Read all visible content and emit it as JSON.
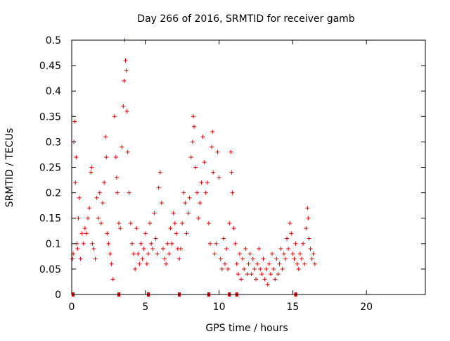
{
  "chart_data": {
    "type": "scatter",
    "title": "Day 266 of 2016, SRMTID for receiver gamb",
    "xlabel": "GPS time / hours",
    "ylabel": "SRMTID / TECUs",
    "xlim": [
      0,
      24
    ],
    "ylim": [
      0,
      0.5
    ],
    "x_ticks": [
      0,
      5,
      10,
      15,
      20
    ],
    "y_ticks": [
      0,
      0.05,
      0.1,
      0.15,
      0.2,
      0.25,
      0.3,
      0.35,
      0.4,
      0.45,
      0.5
    ],
    "x_tick_labels": [
      "0",
      "5",
      "10",
      "15",
      "20"
    ],
    "y_tick_labels": [
      "0",
      "0.05",
      "0.1",
      "0.15",
      "0.2",
      "0.25",
      "0.3",
      "0.35",
      "0.4",
      "0.45",
      "0.5"
    ],
    "grid": false,
    "marker": "+",
    "series": [
      {
        "name": "SRMTID",
        "color": "#e00000",
        "points": [
          [
            0.05,
            0.07
          ],
          [
            0.1,
            0.08
          ],
          [
            0.15,
            0.3
          ],
          [
            0.2,
            0.34
          ],
          [
            0.25,
            0.22
          ],
          [
            0.3,
            0.27
          ],
          [
            0.35,
            0.1
          ],
          [
            0.4,
            0.09
          ],
          [
            0.45,
            0.15
          ],
          [
            0.5,
            0.19
          ],
          [
            0.6,
            0.07
          ],
          [
            0.7,
            0.12
          ],
          [
            0.8,
            0.1
          ],
          [
            0.9,
            0.13
          ],
          [
            1.0,
            0.12
          ],
          [
            1.1,
            0.15
          ],
          [
            1.2,
            0.17
          ],
          [
            1.3,
            0.24
          ],
          [
            1.35,
            0.25
          ],
          [
            1.4,
            0.1
          ],
          [
            1.5,
            0.09
          ],
          [
            1.6,
            0.07
          ],
          [
            1.7,
            0.19
          ],
          [
            1.8,
            0.15
          ],
          [
            1.9,
            0.2
          ],
          [
            2.0,
            0.14
          ],
          [
            2.1,
            0.18
          ],
          [
            2.2,
            0.22
          ],
          [
            2.3,
            0.31
          ],
          [
            2.35,
            0.27
          ],
          [
            2.4,
            0.12
          ],
          [
            2.5,
            0.1
          ],
          [
            2.6,
            0.08
          ],
          [
            2.7,
            0.06
          ],
          [
            2.8,
            0.03
          ],
          [
            2.9,
            0.35
          ],
          [
            3.0,
            0.27
          ],
          [
            3.05,
            0.23
          ],
          [
            3.1,
            0.2
          ],
          [
            3.2,
            0.14
          ],
          [
            3.3,
            0.13
          ],
          [
            3.4,
            0.29
          ],
          [
            3.5,
            0.37
          ],
          [
            3.55,
            0.42
          ],
          [
            3.6,
            0.5
          ],
          [
            3.65,
            0.46
          ],
          [
            3.7,
            0.44
          ],
          [
            3.75,
            0.36
          ],
          [
            3.8,
            0.28
          ],
          [
            3.9,
            0.2
          ],
          [
            4.0,
            0.14
          ],
          [
            4.1,
            0.1
          ],
          [
            4.2,
            0.08
          ],
          [
            4.3,
            0.05
          ],
          [
            4.4,
            0.13
          ],
          [
            4.5,
            0.08
          ],
          [
            4.6,
            0.06
          ],
          [
            4.7,
            0.1
          ],
          [
            4.8,
            0.07
          ],
          [
            4.9,
            0.09
          ],
          [
            5.0,
            0.12
          ],
          [
            5.1,
            0.06
          ],
          [
            5.2,
            0.08
          ],
          [
            5.3,
            0.14
          ],
          [
            5.4,
            0.1
          ],
          [
            5.5,
            0.09
          ],
          [
            5.6,
            0.16
          ],
          [
            5.7,
            0.11
          ],
          [
            5.8,
            0.08
          ],
          [
            5.9,
            0.21
          ],
          [
            6.0,
            0.24
          ],
          [
            6.1,
            0.18
          ],
          [
            6.2,
            0.09
          ],
          [
            6.3,
            0.07
          ],
          [
            6.4,
            0.06
          ],
          [
            6.5,
            0.1
          ],
          [
            6.6,
            0.08
          ],
          [
            6.7,
            0.13
          ],
          [
            6.8,
            0.1
          ],
          [
            6.9,
            0.16
          ],
          [
            7.0,
            0.14
          ],
          [
            7.1,
            0.12
          ],
          [
            7.2,
            0.09
          ],
          [
            7.3,
            0.07
          ],
          [
            7.4,
            0.09
          ],
          [
            7.5,
            0.14
          ],
          [
            7.6,
            0.2
          ],
          [
            7.7,
            0.18
          ],
          [
            7.8,
            0.12
          ],
          [
            7.9,
            0.16
          ],
          [
            8.0,
            0.19
          ],
          [
            8.1,
            0.27
          ],
          [
            8.2,
            0.3
          ],
          [
            8.25,
            0.35
          ],
          [
            8.3,
            0.33
          ],
          [
            8.4,
            0.25
          ],
          [
            8.5,
            0.2
          ],
          [
            8.6,
            0.15
          ],
          [
            8.7,
            0.18
          ],
          [
            8.8,
            0.22
          ],
          [
            8.9,
            0.31
          ],
          [
            9.0,
            0.26
          ],
          [
            9.1,
            0.2
          ],
          [
            9.2,
            0.22
          ],
          [
            9.3,
            0.14
          ],
          [
            9.4,
            0.1
          ],
          [
            9.5,
            0.29
          ],
          [
            9.55,
            0.32
          ],
          [
            9.6,
            0.24
          ],
          [
            9.7,
            0.08
          ],
          [
            9.8,
            0.1
          ],
          [
            9.9,
            0.28
          ],
          [
            10.0,
            0.23
          ],
          [
            10.1,
            0.07
          ],
          [
            10.2,
            0.05
          ],
          [
            10.3,
            0.11
          ],
          [
            10.4,
            0.06
          ],
          [
            10.5,
            0.09
          ],
          [
            10.6,
            0.05
          ],
          [
            10.7,
            0.14
          ],
          [
            10.8,
            0.28
          ],
          [
            10.85,
            0.24
          ],
          [
            10.9,
            0.2
          ],
          [
            11.0,
            0.13
          ],
          [
            11.1,
            0.1
          ],
          [
            11.2,
            0.06
          ],
          [
            11.3,
            0.04
          ],
          [
            11.4,
            0.08
          ],
          [
            11.5,
            0.03
          ],
          [
            11.6,
            0.07
          ],
          [
            11.7,
            0.05
          ],
          [
            11.8,
            0.09
          ],
          [
            11.9,
            0.04
          ],
          [
            12.0,
            0.06
          ],
          [
            12.1,
            0.08
          ],
          [
            12.2,
            0.04
          ],
          [
            12.3,
            0.07
          ],
          [
            12.4,
            0.05
          ],
          [
            12.5,
            0.03
          ],
          [
            12.6,
            0.06
          ],
          [
            12.7,
            0.09
          ],
          [
            12.8,
            0.05
          ],
          [
            12.9,
            0.04
          ],
          [
            13.0,
            0.07
          ],
          [
            13.1,
            0.03
          ],
          [
            13.2,
            0.05
          ],
          [
            13.3,
            0.02
          ],
          [
            13.4,
            0.06
          ],
          [
            13.5,
            0.04
          ],
          [
            13.6,
            0.08
          ],
          [
            13.7,
            0.05
          ],
          [
            13.8,
            0.03
          ],
          [
            13.9,
            0.07
          ],
          [
            14.0,
            0.04
          ],
          [
            14.1,
            0.06
          ],
          [
            14.2,
            0.09
          ],
          [
            14.3,
            0.05
          ],
          [
            14.4,
            0.08
          ],
          [
            14.5,
            0.07
          ],
          [
            14.6,
            0.11
          ],
          [
            14.7,
            0.09
          ],
          [
            14.8,
            0.14
          ],
          [
            14.9,
            0.12
          ],
          [
            15.0,
            0.08
          ],
          [
            15.1,
            0.07
          ],
          [
            15.2,
            0.1
          ],
          [
            15.3,
            0.06
          ],
          [
            15.4,
            0.05
          ],
          [
            15.5,
            0.08
          ],
          [
            15.6,
            0.07
          ],
          [
            15.7,
            0.1
          ],
          [
            15.8,
            0.06
          ],
          [
            15.9,
            0.13
          ],
          [
            16.0,
            0.17
          ],
          [
            16.05,
            0.15
          ],
          [
            16.1,
            0.11
          ],
          [
            16.2,
            0.09
          ],
          [
            16.3,
            0.07
          ],
          [
            16.4,
            0.08
          ],
          [
            16.5,
            0.06
          ]
        ]
      }
    ],
    "baseline_markers_x": [
      0.1,
      3.2,
      5.2,
      7.3,
      9.3,
      10.7,
      11.2,
      15.2
    ]
  }
}
